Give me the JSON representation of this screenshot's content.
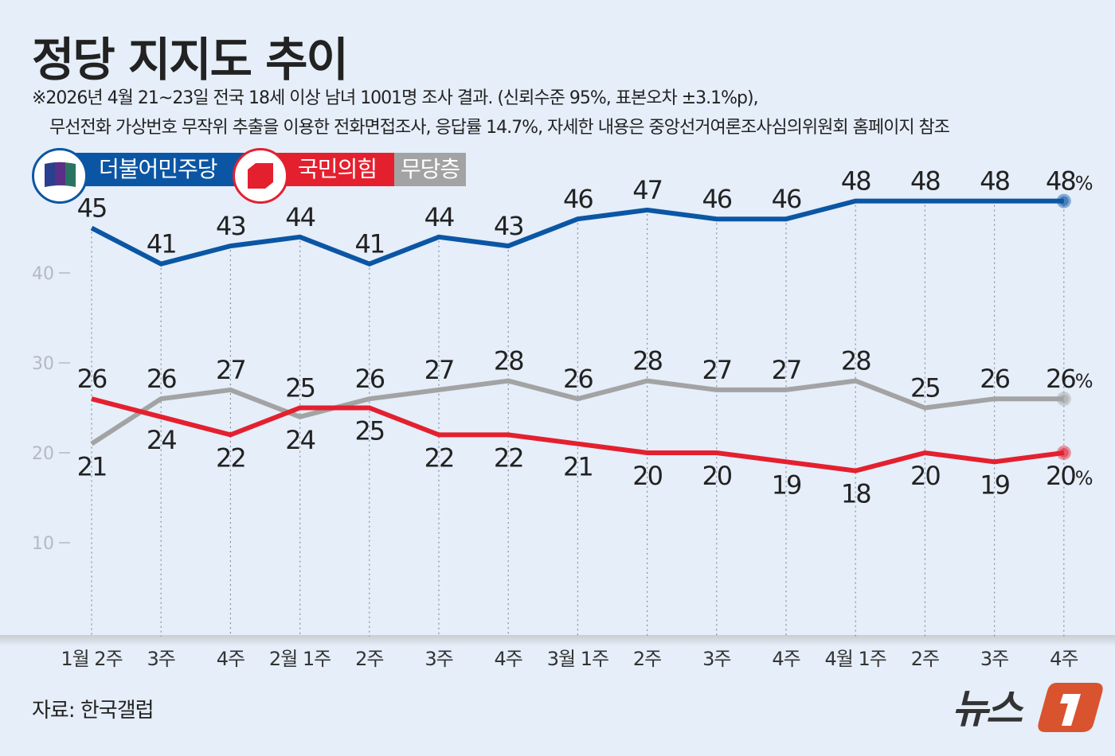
{
  "header": {
    "title": "정당 지지도 추이",
    "note_line1": "※2026년 4월 21~23일 전국 18세 이상 남녀 1001명 조사 결과. (신뢰수준 95%, 표본오차 ±3.1%p),",
    "note_line2": "무선전화 가상번호 무작위 추출을 이용한 전화면접조사, 응답률 14.7%, 자세한 내용은 중앙선거여론조사심의위원회 홈페이지 참조"
  },
  "footer": {
    "source": "자료: 한국갤럽",
    "logo_text": "뉴스1"
  },
  "chart_data": {
    "type": "line",
    "categories": [
      "1월 2주",
      "3주",
      "4주",
      "2월 1주",
      "2주",
      "3주",
      "4주",
      "3월 1주",
      "2주",
      "3주",
      "4주",
      "4월 1주",
      "2주",
      "3주",
      "4주"
    ],
    "series": [
      {
        "name": "더불어민주당",
        "color": "#0b56a4",
        "values": [
          45,
          41,
          43,
          44,
          41,
          44,
          43,
          46,
          47,
          46,
          46,
          48,
          48,
          48,
          48
        ]
      },
      {
        "name": "국민의힘",
        "color": "#e4202f",
        "values": [
          26,
          24,
          22,
          25,
          25,
          22,
          22,
          21,
          20,
          20,
          19,
          18,
          20,
          19,
          20
        ]
      },
      {
        "name": "무당층",
        "color": "#a3a3a3",
        "values": [
          21,
          26,
          27,
          24,
          26,
          27,
          28,
          26,
          28,
          27,
          27,
          28,
          25,
          26,
          26
        ]
      }
    ],
    "yticks": [
      10,
      20,
      30,
      40
    ],
    "ylim": [
      0,
      50
    ],
    "last_suffix": "%",
    "legend": "top-left",
    "grid": "vertical dotted"
  }
}
